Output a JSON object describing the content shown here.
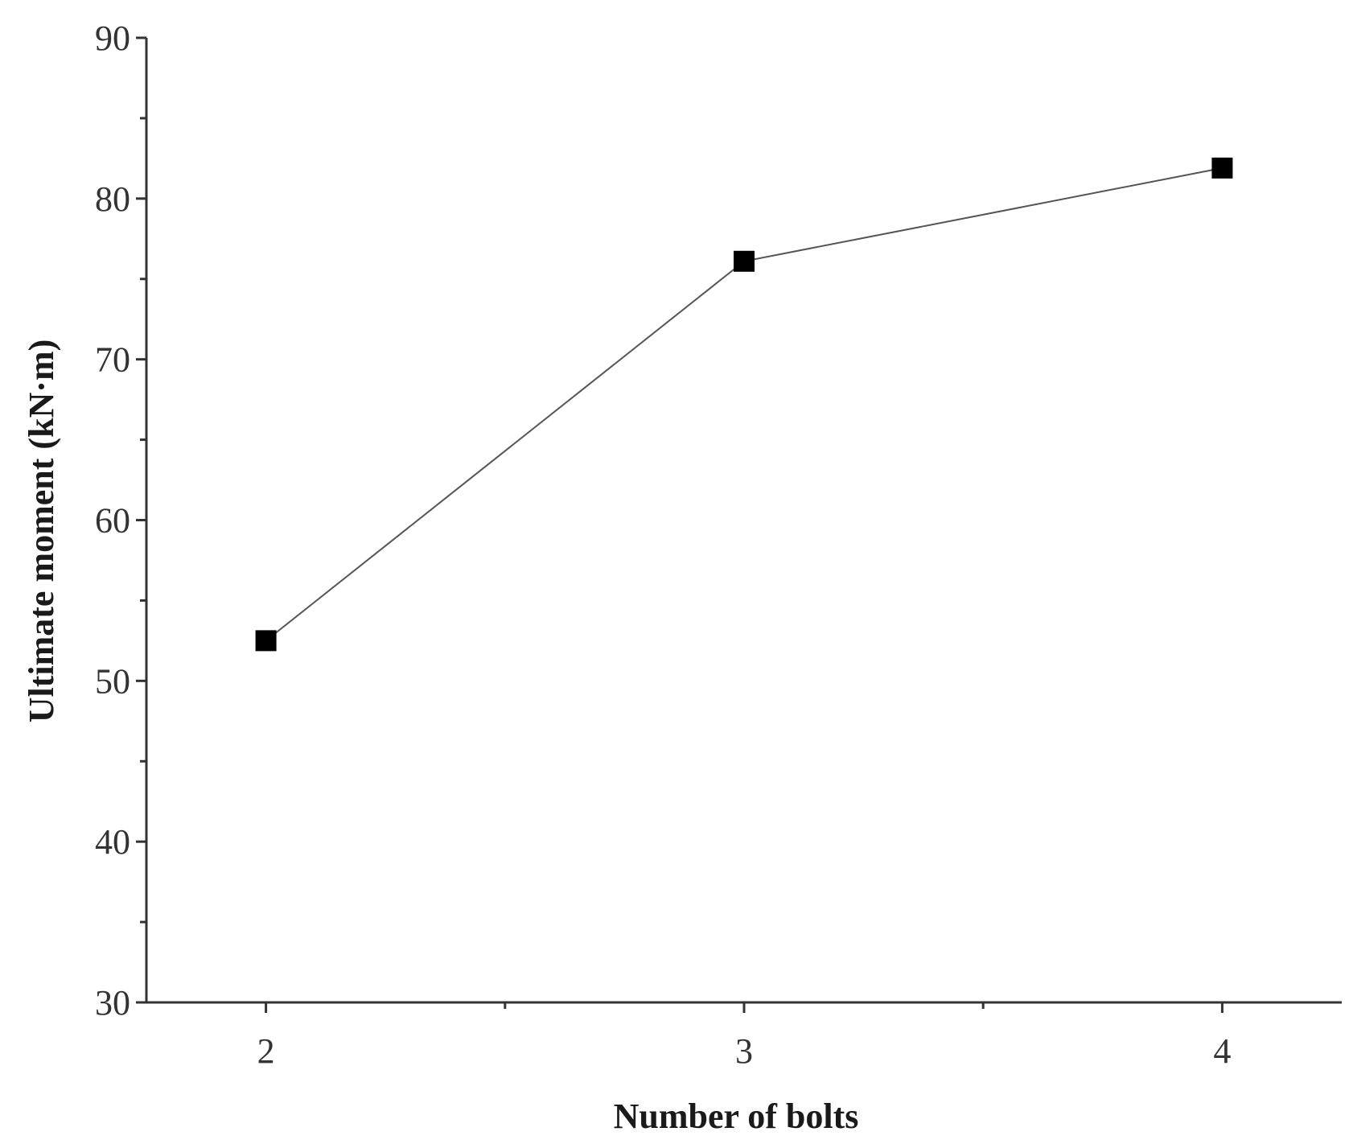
{
  "chart_data": {
    "type": "line",
    "title": "",
    "xlabel": "Number of bolts",
    "ylabel": "Ultimate moment (kN·m)",
    "x_ticks": [
      "2",
      "3",
      "4"
    ],
    "y_ticks": [
      "30",
      "40",
      "50",
      "60",
      "70",
      "80",
      "90"
    ],
    "xlim": [
      1.75,
      4.25
    ],
    "ylim": [
      30,
      90
    ],
    "grid": false,
    "legend": "none",
    "series": [
      {
        "x": [
          2,
          3,
          4
        ],
        "y": [
          52.5,
          76.1,
          81.9
        ],
        "marker": "square",
        "line_color": "#555555",
        "marker_color": "#000000"
      }
    ]
  }
}
